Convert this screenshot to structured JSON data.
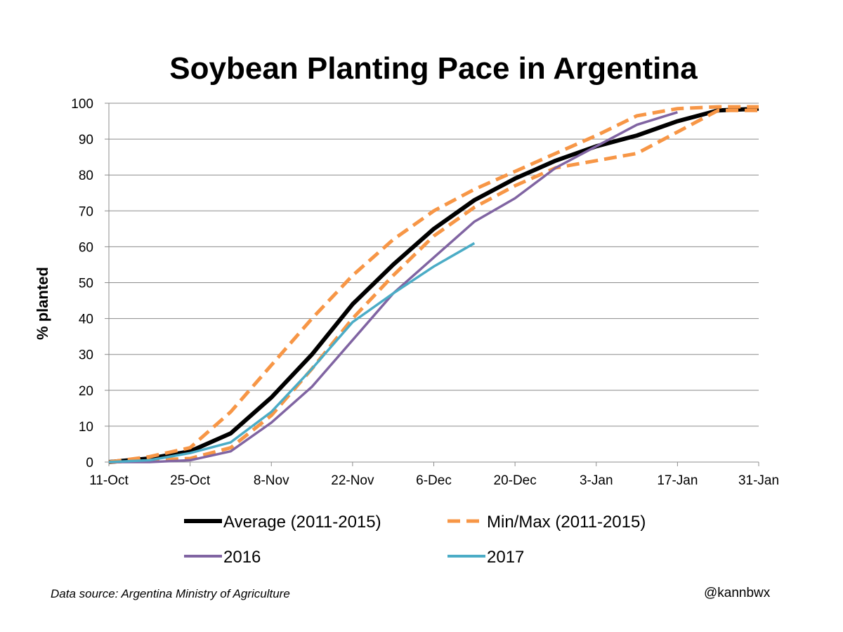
{
  "chart_data": {
    "type": "line",
    "title": "Soybean Planting Pace in Argentina",
    "xlabel": "",
    "ylabel": "% planted",
    "ylim": [
      0,
      100
    ],
    "yticks": [
      "0",
      "10",
      "20",
      "30",
      "40",
      "50",
      "60",
      "70",
      "80",
      "90",
      "100"
    ],
    "x_tick_labels": [
      "11-Oct",
      "25-Oct",
      "8-Nov",
      "22-Nov",
      "6-Dec",
      "20-Dec",
      "3-Jan",
      "17-Jan",
      "31-Jan"
    ],
    "grid": "horizontal",
    "legend_position": "bottom",
    "x": [
      "11-Oct",
      "18-Oct",
      "25-Oct",
      "1-Nov",
      "8-Nov",
      "15-Nov",
      "22-Nov",
      "29-Nov",
      "6-Dec",
      "13-Dec",
      "20-Dec",
      "27-Dec",
      "3-Jan",
      "10-Jan",
      "17-Jan",
      "24-Jan",
      "31-Jan"
    ],
    "series": [
      {
        "name": "Average (2011-2015)",
        "color": "#000000",
        "style": "solid",
        "values": [
          0,
          1,
          3,
          8,
          18,
          30,
          44,
          55,
          65,
          73,
          79,
          84,
          88,
          91,
          95,
          98,
          98.5
        ]
      },
      {
        "name": "Min/Max (2011-2015)",
        "color": "#f79646",
        "style": "dashed",
        "values": [
          0,
          1.5,
          4,
          14,
          27,
          40,
          52,
          62,
          70,
          76,
          81,
          86,
          91,
          96.5,
          98.5,
          99,
          99
        ]
      },
      {
        "name": "",
        "color": "#f79646",
        "style": "dashed",
        "values": [
          0,
          0.5,
          1,
          4,
          13,
          26,
          40,
          52,
          63,
          71,
          77,
          82,
          84,
          86,
          92,
          98,
          98
        ]
      },
      {
        "name": "2016",
        "color": "#8064a2",
        "style": "solid",
        "values": [
          0,
          0,
          0.5,
          3,
          11,
          21,
          34,
          47,
          57,
          67,
          73.5,
          82,
          88,
          94,
          97.5,
          null,
          null
        ]
      },
      {
        "name": "2017",
        "color": "#4bacc6",
        "style": "solid",
        "values": [
          0,
          0.5,
          2.5,
          5.5,
          14,
          26,
          39,
          47,
          54.5,
          61,
          null,
          null,
          null,
          null,
          null,
          null,
          null
        ]
      }
    ]
  },
  "footer": {
    "source": "Data source: Argentina Ministry of Agriculture",
    "credit": "@kannbwx"
  }
}
